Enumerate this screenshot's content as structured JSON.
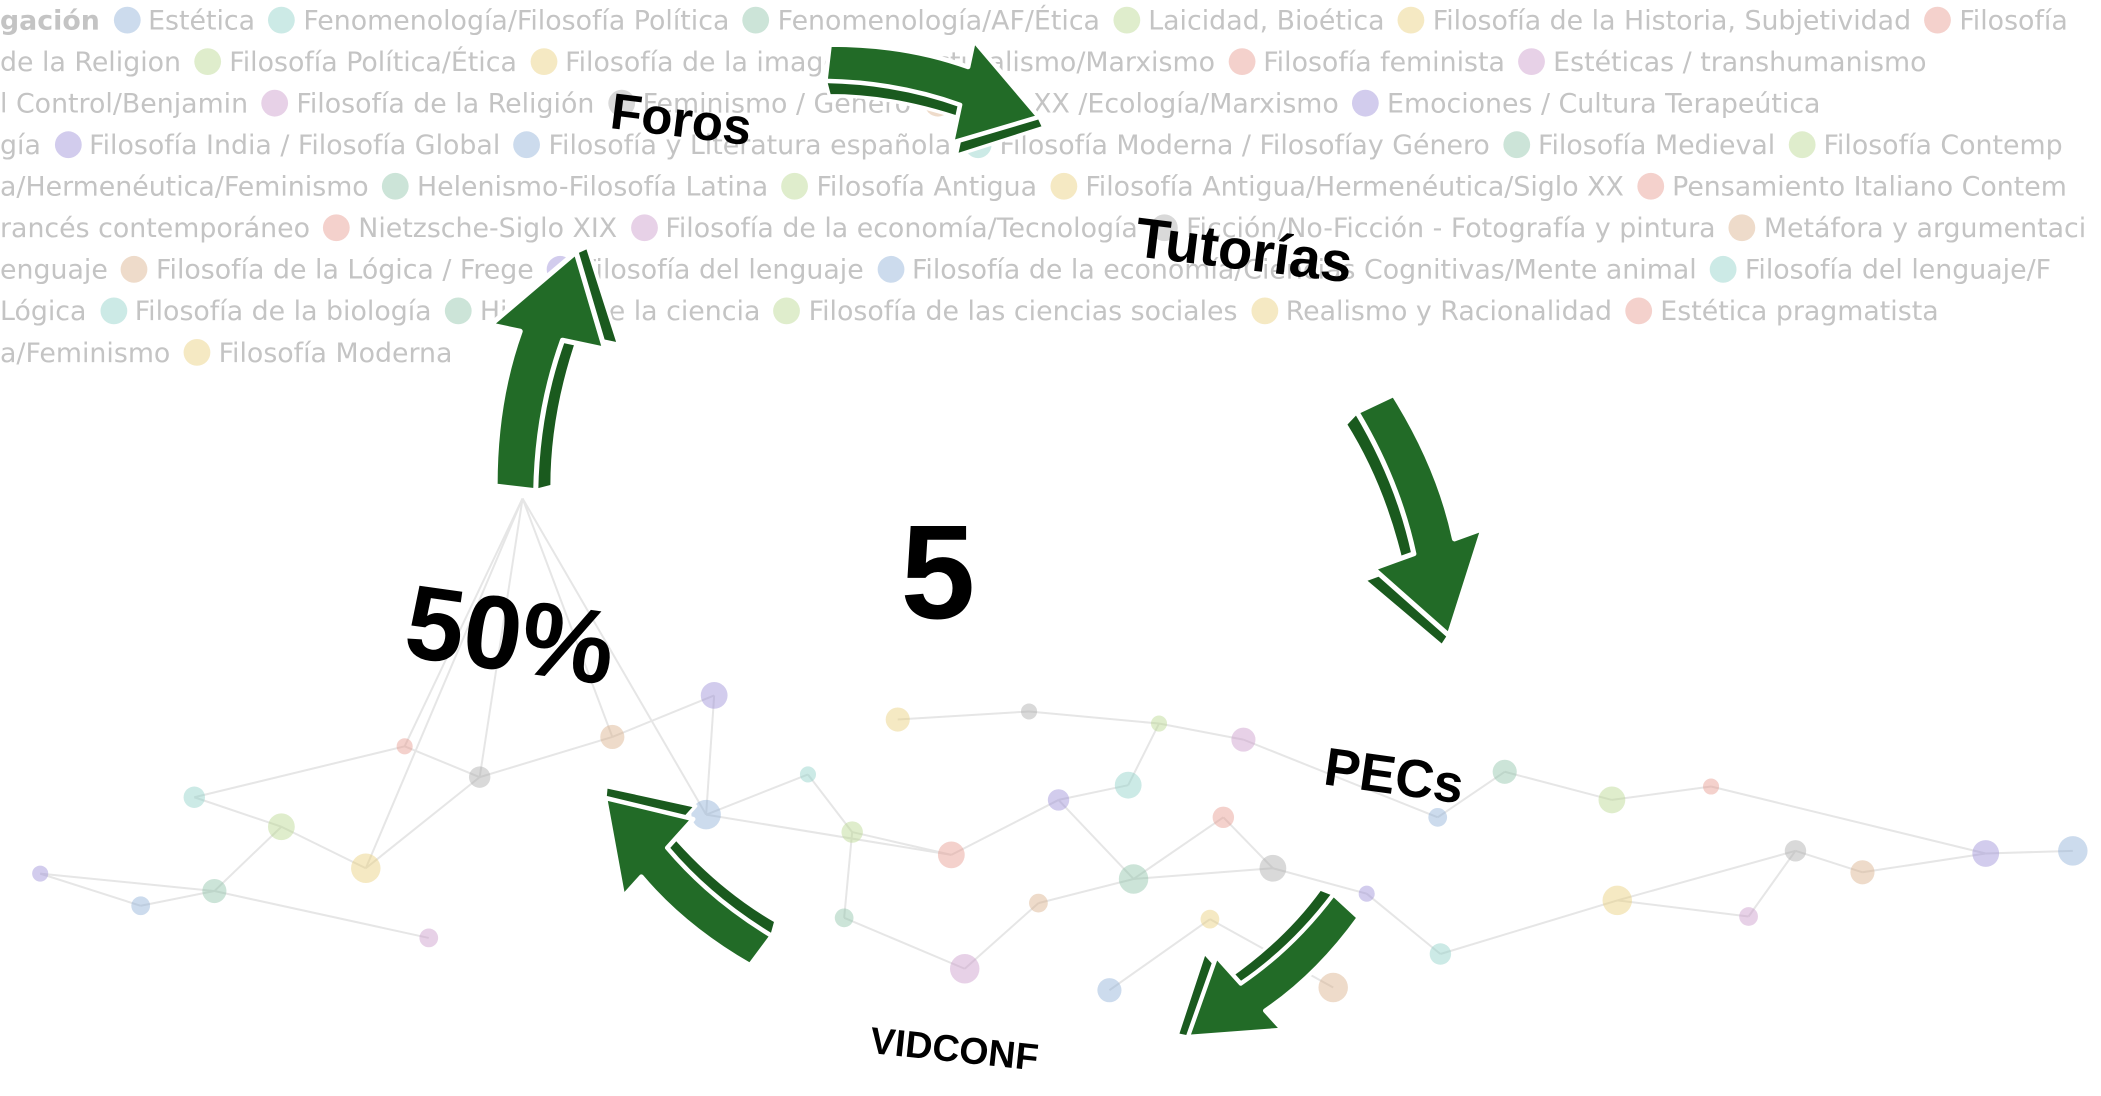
{
  "cycle": {
    "center": "5",
    "percentage": "50%",
    "steps": [
      "Foros",
      "Tutorías",
      "PECs",
      "VIDCONF"
    ]
  },
  "background": {
    "tags": [
      [
        "gación",
        "Estética",
        "Fenomenología/Filosofía Política",
        "Fenomenología/AF/Ética",
        "Laicidad, Bioética",
        "Filosofía de la Historia, Subjetividad",
        "Filosofía"
      ],
      [
        "de la Religion",
        "Filosofía Política/Ética",
        "Filosofía de la imagen/Estructuralismo/Marxismo",
        "Filosofía feminista",
        "Estéticas / transhumanismo"
      ],
      [
        "l Control/Benjamin",
        "Filosofía de la Religión",
        "Feminismo / Género",
        "Siglo XX /Ecología/Marxismo",
        "Emociones / Cultura Terapeútica"
      ],
      [
        "gía",
        "Filosofía India / Filosofía Global",
        "Filosofía y Literatura española",
        "Filosofía Moderna / Filosofíay Género",
        "Filosofía Medieval",
        "Filosofía Contemp"
      ],
      [
        "a/Hermenéutica/Feminismo",
        "Helenismo-Filosofía Latina",
        "Filosofía Antigua",
        "Filosofía Antigua/Hermenéutica/Siglo XX",
        "Pensamiento Italiano Contem"
      ],
      [
        "rancés contemporáneo",
        "Nietzsche-Siglo XIX",
        "Filosofía de la economía/Tecnología",
        "Ficción/No-Ficción - Fotografía y pintura",
        "Metáfora y argumentaci"
      ],
      [
        "enguaje",
        "Filosofía de la Lógica / Frege",
        "Filosofía del lenguaje",
        "Filosofía de la economía/Ciencias Cognitivas/Mente animal",
        "Filosofía del lenguaje/F"
      ],
      [
        "Lógica",
        "Filosofía de la biología",
        "Historia de la ciencia",
        "Filosofía de las ciencias sociales",
        "Realismo y Racionalidad",
        "Estética pragmatista"
      ],
      [
        "a/Feminismo",
        "Filosofía Moderna"
      ]
    ]
  }
}
